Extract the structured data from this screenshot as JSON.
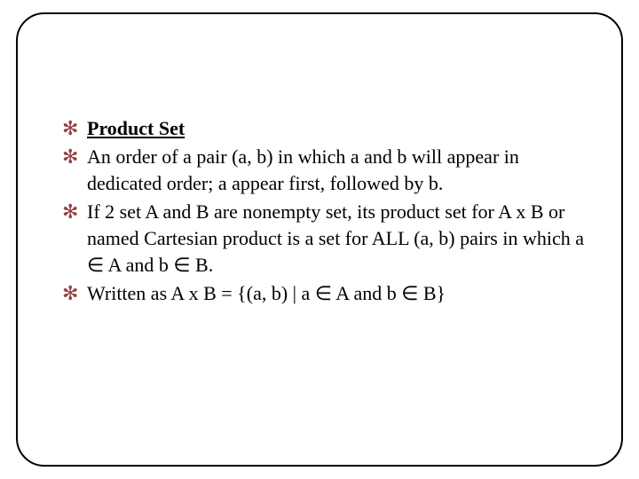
{
  "bullet_color": "#954242",
  "text_color": "#000000",
  "border_color": "#000000",
  "background_color": "#ffffff",
  "font_family": "Garamond, Georgia, serif",
  "font_size_pt": 16,
  "items": [
    {
      "text": "Product Set",
      "bold_underline": true
    },
    {
      "text": "An order of a pair (a, b) in which a and b will appear in dedicated order; a appear first, followed by b."
    },
    {
      "text": "If 2 set A and B are nonempty set, its product set for A x B or named Cartesian product is a set for ALL (a, b) pairs in which a ∈ A and b ∈ B."
    },
    {
      "text": "Written as A x B = {(a, b) | a ∈ A and b ∈ B}"
    }
  ]
}
